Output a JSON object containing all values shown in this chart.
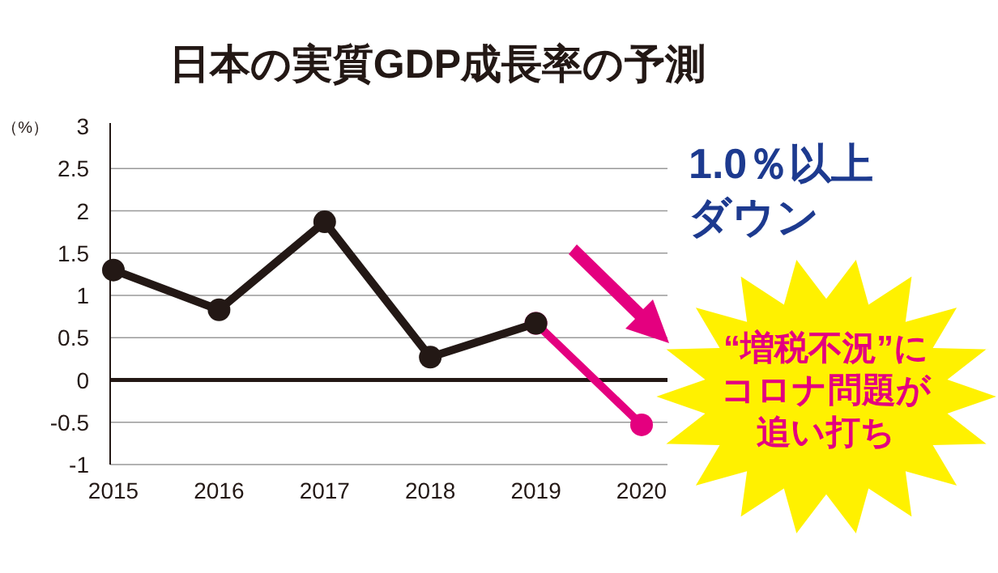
{
  "chart_data": {
    "type": "line",
    "title": "日本の実質GDP成長率の予測",
    "ylabel": "（%）",
    "categories": [
      "2015",
      "2016",
      "2017",
      "2018",
      "2019",
      "2020"
    ],
    "series": [
      {
        "color": "#e4007f",
        "values": [
          null,
          null,
          null,
          null,
          0.67,
          -0.53
        ]
      },
      {
        "color": "#231815",
        "values": [
          1.3,
          0.83,
          1.87,
          0.27,
          0.67,
          null
        ]
      }
    ],
    "ylim": [
      -1,
      3
    ],
    "yticks": [
      -1,
      -0.5,
      0,
      0.5,
      1,
      1.5,
      2,
      2.5,
      3
    ],
    "grid": "y",
    "marker": "circle",
    "line_style": "solid",
    "ref_lines": [
      {
        "axis": "y",
        "value": 0,
        "color": "#231815"
      }
    ],
    "annotations": [
      "1.0％以上",
      "ダウン",
      "“増税不況”に",
      "コロナ問題が",
      "追い打ち"
    ]
  }
}
